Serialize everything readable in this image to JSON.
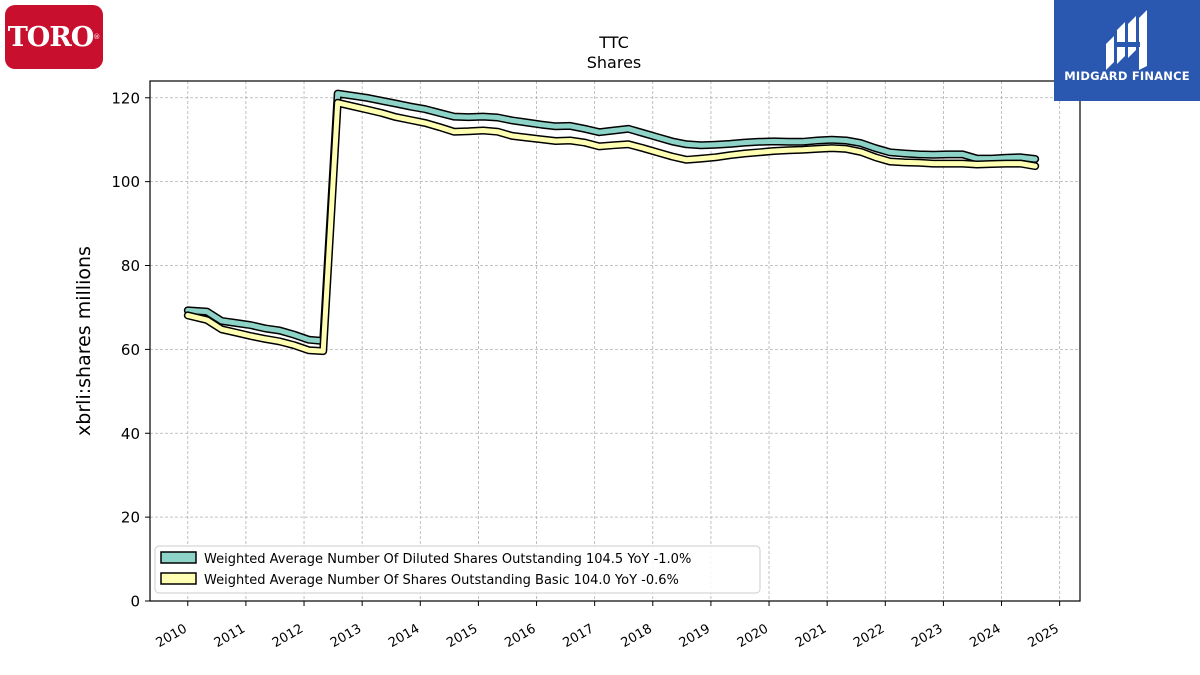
{
  "logos": {
    "left_text": "TORO",
    "left_mark": "®",
    "left_color": "#c8102e",
    "right_text": "MIDGARD FINANCE",
    "right_color": "#2a57b0"
  },
  "chart_data": {
    "type": "line",
    "title": "TTC",
    "subtitle": "Shares",
    "xlabel": "",
    "ylabel": "xbrli:shares millions",
    "xlim": [
      2009.35,
      2025.35
    ],
    "ylim": [
      0,
      124
    ],
    "yticks": [
      0,
      20,
      40,
      60,
      80,
      100,
      120
    ],
    "xticks": [
      2010,
      2011,
      2012,
      2013,
      2014,
      2015,
      2016,
      2017,
      2018,
      2019,
      2020,
      2021,
      2022,
      2023,
      2024,
      2025
    ],
    "grid": true,
    "legend_position": "lower-left",
    "x": [
      2010.0,
      2010.33,
      2010.58,
      2010.83,
      2011.08,
      2011.33,
      2011.58,
      2011.83,
      2012.08,
      2012.33,
      2012.58,
      2012.83,
      2013.08,
      2013.33,
      2013.58,
      2013.83,
      2014.08,
      2014.33,
      2014.58,
      2014.83,
      2015.08,
      2015.33,
      2015.58,
      2015.83,
      2016.08,
      2016.33,
      2016.58,
      2016.83,
      2017.08,
      2017.33,
      2017.58,
      2017.83,
      2018.08,
      2018.33,
      2018.58,
      2018.83,
      2019.08,
      2019.33,
      2019.58,
      2019.83,
      2020.08,
      2020.33,
      2020.58,
      2020.83,
      2021.08,
      2021.33,
      2021.58,
      2021.83,
      2022.08,
      2022.33,
      2022.58,
      2022.83,
      2023.08,
      2023.33,
      2023.58,
      2023.83,
      2024.08,
      2024.33,
      2024.58
    ],
    "series": [
      {
        "name": "Weighted Average Number Of Diluted Shares Outstanding",
        "legend_label": "Weighted Average Number Of Diluted Shares Outstanding  104.5 YoY -1.0%",
        "color": "#8dd3c7",
        "values": [
          69.3,
          69.0,
          66.8,
          66.3,
          65.8,
          65.0,
          64.5,
          63.5,
          62.3,
          62.0,
          121.0,
          120.5,
          120.0,
          119.3,
          118.6,
          117.9,
          117.3,
          116.4,
          115.5,
          115.4,
          115.5,
          115.3,
          114.6,
          114.1,
          113.6,
          113.2,
          113.3,
          112.6,
          111.8,
          112.2,
          112.6,
          111.6,
          110.6,
          109.6,
          108.9,
          108.7,
          108.8,
          109.0,
          109.3,
          109.5,
          109.6,
          109.5,
          109.5,
          109.8,
          110.0,
          109.8,
          109.2,
          108.0,
          107.0,
          106.7,
          106.5,
          106.4,
          106.5,
          106.5,
          105.5,
          105.5,
          105.7,
          105.8,
          105.4
        ]
      },
      {
        "name": "Weighted Average Number Of Shares Outstanding Basic",
        "legend_label": "Weighted Average Number Of Shares Outstanding Basic  104.0 YoY -0.6%",
        "color": "#ffffb3",
        "values": [
          68.1,
          67.0,
          64.8,
          64.0,
          63.2,
          62.5,
          61.9,
          61.0,
          59.8,
          59.6,
          118.8,
          118.0,
          117.2,
          116.4,
          115.4,
          114.7,
          114.0,
          113.0,
          111.9,
          112.0,
          112.2,
          111.9,
          110.9,
          110.5,
          110.1,
          109.7,
          109.8,
          109.3,
          108.4,
          108.7,
          108.9,
          108.0,
          107.0,
          106.0,
          105.2,
          105.5,
          105.8,
          106.3,
          106.7,
          107.0,
          107.3,
          107.5,
          107.6,
          107.8,
          108.0,
          107.8,
          107.1,
          105.8,
          104.8,
          104.6,
          104.5,
          104.3,
          104.3,
          104.3,
          104.1,
          104.2,
          104.3,
          104.3,
          103.7
        ]
      }
    ]
  }
}
